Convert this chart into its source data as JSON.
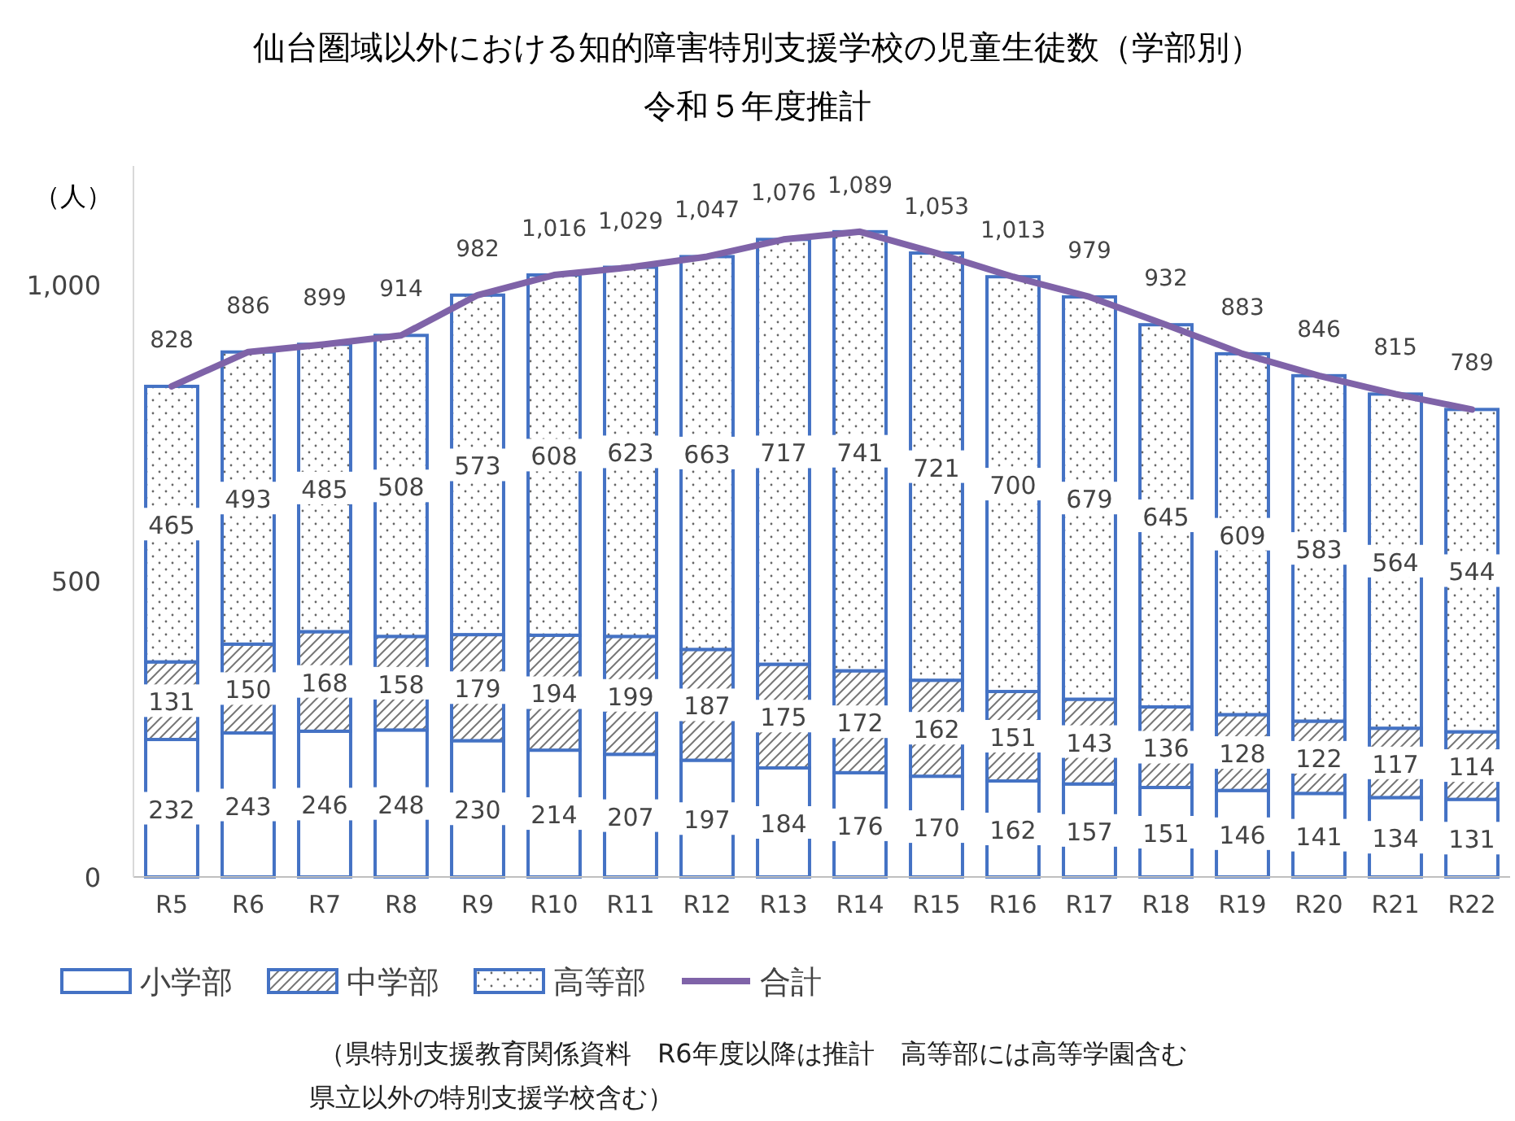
{
  "chart_data": {
    "type": "bar",
    "stacked": true,
    "title": "仙台圏域以外における知的障害特別支援学校の児童生徒数（学部別）",
    "subtitle": "令和５年度推計",
    "ylabel": "（人）",
    "categories": [
      "R5",
      "R6",
      "R7",
      "R8",
      "R9",
      "R10",
      "R11",
      "R12",
      "R13",
      "R14",
      "R15",
      "R16",
      "R17",
      "R18",
      "R19",
      "R20",
      "R21",
      "R22"
    ],
    "series": [
      {
        "name": "小学部",
        "color": "#4472c4",
        "values": [
          232,
          243,
          246,
          248,
          230,
          214,
          207,
          197,
          184,
          176,
          170,
          162,
          157,
          151,
          146,
          141,
          134,
          131
        ]
      },
      {
        "name": "中学部",
        "color": "#4472c4",
        "values": [
          131,
          150,
          168,
          158,
          179,
          194,
          199,
          187,
          175,
          172,
          162,
          151,
          143,
          136,
          128,
          122,
          117,
          114
        ]
      },
      {
        "name": "高等部",
        "color": "#4472c4",
        "values": [
          465,
          493,
          485,
          508,
          573,
          608,
          623,
          663,
          717,
          741,
          721,
          700,
          679,
          645,
          609,
          583,
          564,
          544
        ]
      },
      {
        "name": "合計",
        "type": "line",
        "color": "#7f63a8",
        "values": [
          828,
          886,
          899,
          914,
          982,
          1016,
          1029,
          1047,
          1076,
          1089,
          1053,
          1013,
          979,
          932,
          883,
          846,
          815,
          789
        ],
        "value_labels": [
          "828",
          "886",
          "899",
          "914",
          "982",
          "1,016",
          "1,029",
          "1,047",
          "1,076",
          "1,089",
          "1,053",
          "1,013",
          "979",
          "932",
          "883",
          "846",
          "815",
          "789"
        ]
      }
    ],
    "ylim": [
      0,
      1200
    ],
    "yticks": [
      0,
      500,
      {
        "value": 1000,
        "label": "1,000"
      }
    ],
    "data_labels": true,
    "legend": "bottom",
    "annotations": [
      "（県特別支援教育関係資料　R6年度以降は推計　高等部には高等学園含む",
      "県立以外の特別支援学校含む）"
    ]
  }
}
